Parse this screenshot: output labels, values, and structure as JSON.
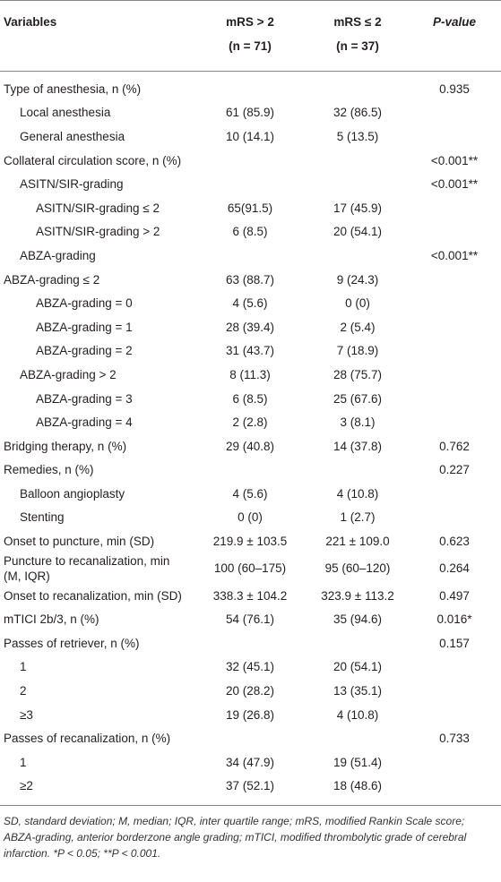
{
  "table": {
    "header": {
      "variables": "Variables",
      "gt": [
        "mRS > 2",
        "(n = 71)"
      ],
      "le": [
        "mRS ≤ 2",
        "(n = 37)"
      ],
      "p": "P-value"
    },
    "rows": [
      {
        "label": "Type of anesthesia, n (%)",
        "p": "0.935"
      },
      {
        "label": "Local anesthesia",
        "gt": "61 (85.9)",
        "le": "32 (86.5)"
      },
      {
        "label": "General anesthesia",
        "gt": "10 (14.1)",
        "le": "5 (13.5)"
      },
      {
        "label": "Collateral circulation score, n (%)",
        "p": "<0.001**"
      },
      {
        "label": "ASITN/SIR-grading",
        "p": "<0.001**"
      },
      {
        "label": "ASITN/SIR-grading ≤ 2",
        "gt": "65(91.5)",
        "le": "17 (45.9)"
      },
      {
        "label": "ASITN/SIR-grading > 2",
        "gt": "6 (8.5)",
        "le": "20 (54.1)"
      },
      {
        "label": "ABZA-grading",
        "p": "<0.001**"
      },
      {
        "label": "ABZA-grading ≤ 2",
        "gt": "63 (88.7)",
        "le": "9 (24.3)"
      },
      {
        "label": "ABZA-grading = 0",
        "gt": "4 (5.6)",
        "le": "0 (0)"
      },
      {
        "label": "ABZA-grading = 1",
        "gt": "28 (39.4)",
        "le": "2 (5.4)"
      },
      {
        "label": "ABZA-grading = 2",
        "gt": "31 (43.7)",
        "le": "7 (18.9)"
      },
      {
        "label": "ABZA-grading > 2",
        "gt": "8 (11.3)",
        "le": "28 (75.7)"
      },
      {
        "label": "ABZA-grading = 3",
        "gt": "6 (8.5)",
        "le": "25 (67.6)"
      },
      {
        "label": "ABZA-grading = 4",
        "gt": "2 (2.8)",
        "le": "3 (8.1)"
      },
      {
        "label": "Bridging therapy, n (%)",
        "gt": "29 (40.8)",
        "le": "14 (37.8)",
        "p": "0.762"
      },
      {
        "label": "Remedies, n (%)",
        "p": "0.227"
      },
      {
        "label": "Balloon angioplasty",
        "gt": "4 (5.6)",
        "le": "4 (10.8)"
      },
      {
        "label": "Stenting",
        "gt": "0 (0)",
        "le": "1 (2.7)"
      },
      {
        "label": "Onset to puncture, min (SD)",
        "gt": "219.9 ± 103.5",
        "le": "221 ± 109.0",
        "p": "0.623"
      },
      {
        "label": "Puncture to recanalization, min (M, IQR)",
        "gt": "100 (60–175)",
        "le": "95 (60–120)",
        "p": "0.264"
      },
      {
        "label": "Onset to recanalization, min (SD)",
        "gt": "338.3 ± 104.2",
        "le": "323.9 ± 113.2",
        "p": "0.497"
      },
      {
        "label": "mTICI 2b/3, n (%)",
        "gt": "54 (76.1)",
        "le": "35 (94.6)",
        "p": "0.016*"
      },
      {
        "label": "Passes of retriever, n (%)",
        "p": "0.157"
      },
      {
        "label": "1",
        "gt": "32 (45.1)",
        "le": "20 (54.1)"
      },
      {
        "label": "2",
        "gt": "20 (28.2)",
        "le": "13 (35.1)"
      },
      {
        "label": "≥3",
        "gt": "19 (26.8)",
        "le": "4 (10.8)"
      },
      {
        "label": "Passes of recanalization, n (%)",
        "p": "0.733"
      },
      {
        "label": "1",
        "gt": "34 (47.9)",
        "le": "19 (51.4)"
      },
      {
        "label": "≥2",
        "gt": "37 (52.1)",
        "le": "18 (48.6)"
      }
    ],
    "footnote": "SD, standard deviation; M, median; IQR, inter quartile range; mRS, modified Rankin Scale score; ABZA-grading, anterior borderzone angle grading; mTICI, modified thrombolytic grade of cerebral infarction. *P < 0.05; **P < 0.001."
  }
}
